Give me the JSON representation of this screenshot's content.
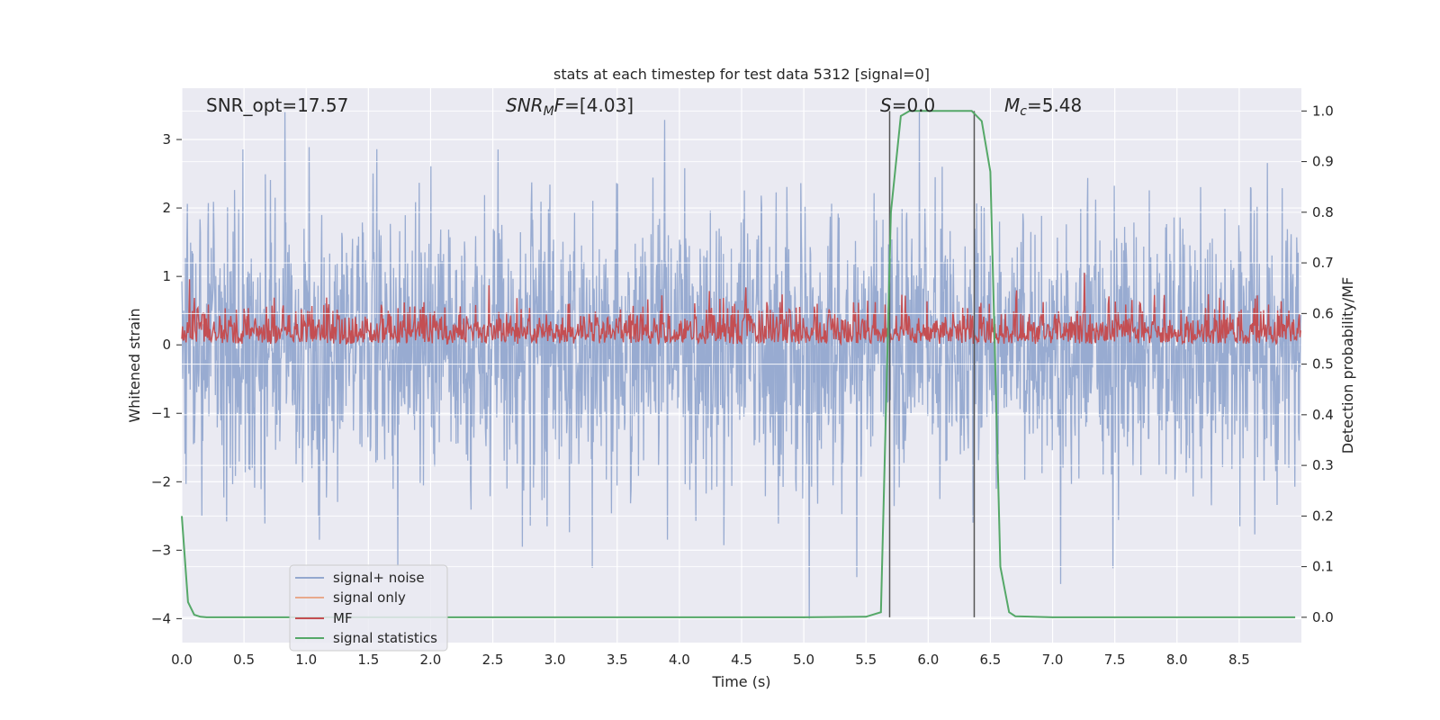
{
  "chart_data": {
    "type": "line",
    "title": "stats at each timestep for test data 5312 [signal=0]",
    "xlabel": "Time (s)",
    "ylabel": "Whitened strain",
    "y2label": "Detection probability/MF",
    "xlim": [
      0.0,
      9.0
    ],
    "ylim": [
      -4.35,
      3.75
    ],
    "y2lim": [
      -0.05,
      1.045
    ],
    "xticks": [
      "0.0",
      "0.5",
      "1.0",
      "1.5",
      "2.0",
      "2.5",
      "3.0",
      "3.5",
      "4.0",
      "4.5",
      "5.0",
      "5.5",
      "6.0",
      "6.5",
      "7.0",
      "7.5",
      "8.0",
      "8.5"
    ],
    "yticks": [
      "3",
      "2",
      "1",
      "0",
      "−1",
      "−2",
      "−3",
      "−4"
    ],
    "y2ticks": [
      "1.0",
      "0.9",
      "0.8",
      "0.7",
      "0.6",
      "0.5",
      "0.4",
      "0.3",
      "0.2",
      "0.1",
      "0.0"
    ],
    "grid": true,
    "legend_position": "lower-left",
    "annotations": {
      "snr_opt": "SNR_opt=17.57",
      "snr_mf": "=[4.03]",
      "snr_mf_symbol": "SNR",
      "snr_mf_sub": "M",
      "snr_mf_tail": "F",
      "s_label": "S",
      "s_value": "=0.0",
      "mc_label": "M",
      "mc_sub": "c",
      "mc_value": "=5.48"
    },
    "series": [
      {
        "name": "signal+ noise",
        "color": "#94a8cf",
        "axis": "left",
        "description": "whitened noise, amplitude roughly ±2.5 with spikes to about 3.4 and -4.0"
      },
      {
        "name": "signal only",
        "color": "#e8a98c",
        "axis": "left",
        "values": []
      },
      {
        "name": "MF",
        "color": "#c44e52",
        "axis": "right",
        "range": [
          0.5,
          0.68
        ]
      },
      {
        "name": "signal statistics",
        "color": "#55a868",
        "axis": "right",
        "x": [
          0.0,
          0.05,
          0.1,
          0.15,
          0.2,
          0.3,
          1.0,
          2.0,
          3.0,
          4.0,
          5.0,
          5.5,
          5.62,
          5.7,
          5.78,
          5.85,
          6.0,
          6.2,
          6.35,
          6.43,
          6.5,
          6.58,
          6.65,
          6.7,
          7.0,
          8.0,
          8.95
        ],
        "values": [
          0.2,
          0.03,
          0.005,
          0.001,
          0.0,
          0.0,
          0.0,
          0.0,
          0.0,
          0.0,
          0.0,
          0.001,
          0.01,
          0.8,
          0.99,
          1.0,
          1.0,
          1.0,
          1.0,
          0.98,
          0.88,
          0.1,
          0.01,
          0.002,
          0.0,
          0.0,
          0.0
        ]
      }
    ],
    "vlines": [
      5.69,
      6.37
    ]
  }
}
